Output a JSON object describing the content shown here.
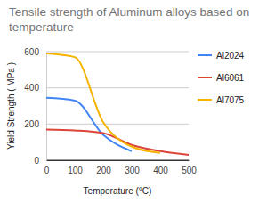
{
  "chart_data": {
    "type": "line",
    "title": "Tensile strength of Aluminum alloys based on temperature",
    "x_label": "Temperature (°C)",
    "y_label": "Yield Strength ( MPa )",
    "x": [
      0,
      100,
      200,
      300,
      400,
      500
    ],
    "series": [
      {
        "name": "Al2024",
        "color": "#4285f4",
        "values": [
          345,
          330,
          140,
          50,
          null,
          null
        ]
      },
      {
        "name": "Al6061",
        "color": "#db4437",
        "values": [
          170,
          165,
          150,
          85,
          50,
          30
        ]
      },
      {
        "name": "Al7075",
        "color": "#f4b400",
        "values": [
          590,
          570,
          210,
          75,
          40,
          null
        ]
      }
    ],
    "xlim": [
      0,
      500
    ],
    "xticks": [
      0,
      100,
      200,
      300,
      400,
      500
    ],
    "ylim": [
      0,
      600
    ],
    "yticks": [
      0,
      200,
      400,
      600
    ],
    "grid": true,
    "legend": "right"
  }
}
